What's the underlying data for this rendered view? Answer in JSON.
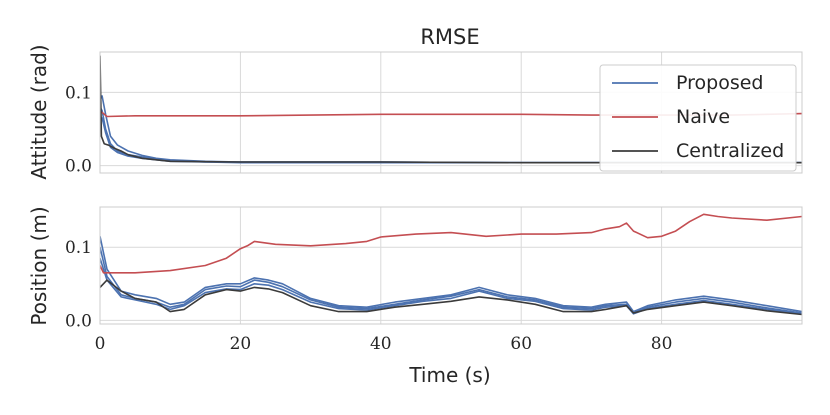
{
  "chart_data": {
    "type": "line",
    "title": "RMSE",
    "xlabel": "Time (s)",
    "xlim": [
      0,
      100
    ],
    "x_ticks": [
      0,
      20,
      40,
      60,
      80
    ],
    "grid": true,
    "legend": {
      "placement": "top-right",
      "entries": [
        {
          "name": "Proposed",
          "color": "#4c72b0"
        },
        {
          "name": "Naive",
          "color": "#c44e52"
        },
        {
          "name": "Centralized",
          "color": "#3b3b3b"
        }
      ]
    },
    "subplots": [
      {
        "ylabel": "Attitude (rad)",
        "ylim": [
          -0.01,
          0.155
        ],
        "y_ticks": [
          0.0,
          0.1
        ],
        "y_tick_labels": [
          "0.0",
          "0.1"
        ],
        "series": [
          {
            "name": "Proposed",
            "color": "#4c72b0",
            "x": [
              0,
              0.3,
              0.8,
              1.5,
              2.5,
              4,
              6,
              8,
              10,
              15,
              20,
              40,
              60,
              80,
              100
            ],
            "y": [
              0.09,
              0.095,
              0.07,
              0.04,
              0.028,
              0.02,
              0.014,
              0.01,
              0.008,
              0.006,
              0.005,
              0.005,
              0.004,
              0.004,
              0.004
            ]
          },
          {
            "name": "Proposed",
            "color": "#4c72b0",
            "x": [
              0,
              0.3,
              0.8,
              1.5,
              2.5,
              4,
              6,
              8,
              10,
              15,
              20,
              40,
              60,
              80,
              100
            ],
            "y": [
              0.08,
              0.075,
              0.05,
              0.03,
              0.02,
              0.015,
              0.012,
              0.009,
              0.007,
              0.005,
              0.005,
              0.005,
              0.004,
              0.004,
              0.004
            ]
          },
          {
            "name": "Proposed",
            "color": "#4c72b0",
            "x": [
              0,
              0.3,
              0.8,
              1.5,
              2.5,
              4,
              6,
              8,
              10,
              15,
              20,
              40,
              60,
              80,
              100
            ],
            "y": [
              0.06,
              0.065,
              0.045,
              0.025,
              0.018,
              0.013,
              0.01,
              0.008,
              0.006,
              0.005,
              0.004,
              0.004,
              0.004,
              0.004,
              0.004
            ]
          },
          {
            "name": "Naive",
            "color": "#c44e52",
            "x": [
              0,
              1,
              5,
              10,
              20,
              30,
              40,
              50,
              60,
              70,
              80,
              90,
              100
            ],
            "y": [
              0.075,
              0.067,
              0.068,
              0.068,
              0.068,
              0.069,
              0.07,
              0.07,
              0.07,
              0.069,
              0.069,
              0.069,
              0.071
            ]
          },
          {
            "name": "Centralized",
            "color": "#3b3b3b",
            "x": [
              0,
              0.2,
              0.6,
              1.2,
              2,
              3,
              4,
              6,
              8,
              10,
              20,
              40,
              60,
              80,
              100
            ],
            "y": [
              0.15,
              0.04,
              0.03,
              0.028,
              0.024,
              0.02,
              0.015,
              0.01,
              0.008,
              0.006,
              0.005,
              0.005,
              0.004,
              0.004,
              0.004
            ]
          }
        ]
      },
      {
        "ylabel": "Position (m)",
        "ylim": [
          -0.005,
          0.155
        ],
        "y_ticks": [
          0.0,
          0.1
        ],
        "y_tick_labels": [
          "0.0",
          "0.1"
        ],
        "series": [
          {
            "name": "Proposed",
            "color": "#4c72b0",
            "x": [
              0,
              1,
              3,
              5,
              8,
              10,
              12,
              15,
              18,
              20,
              22,
              24,
              26,
              30,
              34,
              38,
              42,
              46,
              50,
              54,
              58,
              62,
              66,
              70,
              72,
              75,
              76,
              78,
              82,
              86,
              90,
              95,
              100
            ],
            "y": [
              0.115,
              0.07,
              0.04,
              0.035,
              0.03,
              0.022,
              0.025,
              0.045,
              0.05,
              0.05,
              0.058,
              0.055,
              0.05,
              0.03,
              0.02,
              0.018,
              0.025,
              0.03,
              0.035,
              0.045,
              0.035,
              0.03,
              0.02,
              0.018,
              0.022,
              0.025,
              0.012,
              0.02,
              0.028,
              0.033,
              0.028,
              0.02,
              0.012
            ]
          },
          {
            "name": "Proposed",
            "color": "#4c72b0",
            "x": [
              0,
              1,
              3,
              5,
              8,
              10,
              12,
              15,
              18,
              20,
              22,
              24,
              26,
              30,
              34,
              38,
              42,
              46,
              50,
              54,
              58,
              62,
              66,
              70,
              72,
              75,
              76,
              78,
              82,
              86,
              90,
              95,
              100
            ],
            "y": [
              0.1,
              0.06,
              0.035,
              0.03,
              0.025,
              0.018,
              0.022,
              0.042,
              0.047,
              0.046,
              0.055,
              0.052,
              0.046,
              0.028,
              0.018,
              0.016,
              0.022,
              0.028,
              0.033,
              0.042,
              0.032,
              0.028,
              0.018,
              0.016,
              0.02,
              0.022,
              0.01,
              0.018,
              0.025,
              0.03,
              0.025,
              0.017,
              0.01
            ]
          },
          {
            "name": "Proposed",
            "color": "#4c72b0",
            "x": [
              0,
              1,
              3,
              5,
              8,
              10,
              12,
              15,
              18,
              20,
              22,
              24,
              26,
              30,
              34,
              38,
              42,
              46,
              50,
              54,
              58,
              62,
              66,
              70,
              72,
              75,
              76,
              78,
              82,
              86,
              90,
              95,
              100
            ],
            "y": [
              0.085,
              0.055,
              0.032,
              0.028,
              0.022,
              0.015,
              0.02,
              0.038,
              0.043,
              0.042,
              0.05,
              0.048,
              0.042,
              0.025,
              0.016,
              0.014,
              0.02,
              0.026,
              0.03,
              0.04,
              0.03,
              0.026,
              0.016,
              0.014,
              0.018,
              0.02,
              0.009,
              0.016,
              0.022,
              0.027,
              0.022,
              0.015,
              0.009
            ]
          },
          {
            "name": "Naive",
            "color": "#c44e52",
            "x": [
              0,
              0.5,
              1,
              5,
              10,
              15,
              18,
              20,
              21,
              22,
              25,
              30,
              35,
              38,
              40,
              45,
              50,
              55,
              60,
              65,
              70,
              72,
              74,
              75,
              76,
              78,
              80,
              82,
              84,
              86,
              88,
              90,
              95,
              100
            ],
            "y": [
              0.075,
              0.065,
              0.065,
              0.065,
              0.068,
              0.075,
              0.085,
              0.098,
              0.102,
              0.108,
              0.104,
              0.102,
              0.105,
              0.108,
              0.114,
              0.118,
              0.12,
              0.115,
              0.118,
              0.118,
              0.12,
              0.125,
              0.128,
              0.133,
              0.122,
              0.113,
              0.115,
              0.122,
              0.135,
              0.145,
              0.142,
              0.14,
              0.137,
              0.142
            ]
          },
          {
            "name": "Centralized",
            "color": "#3b3b3b",
            "x": [
              0,
              1,
              3,
              5,
              8,
              10,
              12,
              15,
              18,
              20,
              22,
              24,
              26,
              30,
              34,
              38,
              42,
              46,
              50,
              54,
              58,
              62,
              66,
              70,
              72,
              75,
              76,
              78,
              82,
              86,
              90,
              95,
              100
            ],
            "y": [
              0.045,
              0.055,
              0.04,
              0.03,
              0.025,
              0.012,
              0.015,
              0.035,
              0.042,
              0.04,
              0.045,
              0.043,
              0.038,
              0.02,
              0.012,
              0.012,
              0.018,
              0.022,
              0.026,
              0.032,
              0.028,
              0.022,
              0.012,
              0.012,
              0.015,
              0.02,
              0.01,
              0.015,
              0.02,
              0.025,
              0.02,
              0.013,
              0.008
            ]
          }
        ]
      }
    ]
  }
}
